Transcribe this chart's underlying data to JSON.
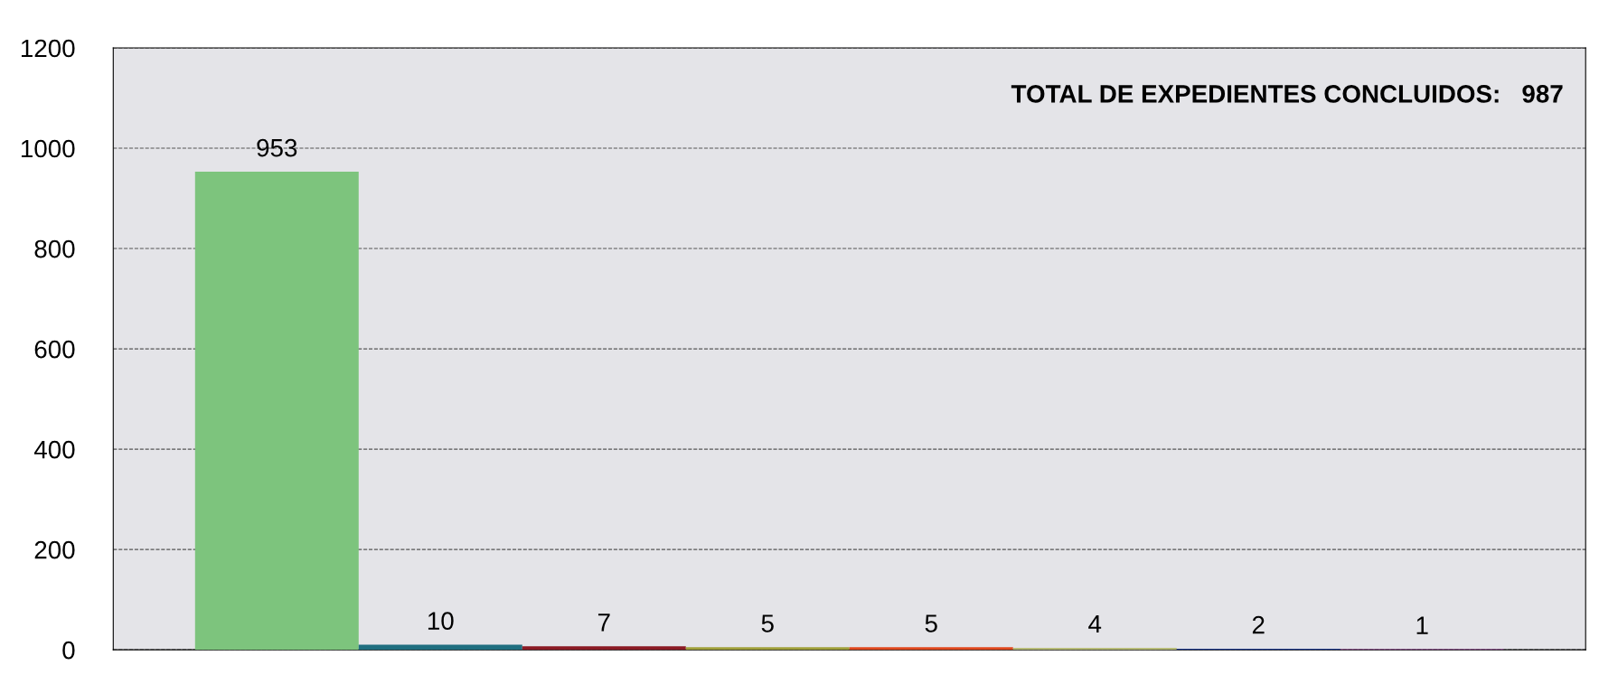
{
  "chart_data": {
    "type": "bar",
    "categories": [
      null,
      null,
      null,
      null,
      null,
      null,
      null,
      null
    ],
    "values": [
      953,
      10,
      7,
      5,
      5,
      4,
      2,
      1
    ],
    "colors": [
      "#7dc47d",
      "#1f6f80",
      "#8b1a24",
      "#a0a03a",
      "#e0481e",
      "#b8bc78",
      "#1f3a8c",
      "#a844a8"
    ],
    "ylim": [
      0,
      1200
    ],
    "yticks": [
      0,
      200,
      400,
      600,
      800,
      1000,
      1200
    ],
    "grid": "y",
    "data_labels": true,
    "annotations": [
      "TOTAL DE EXPEDIENTES CONCLUIDOS:   987"
    ]
  }
}
